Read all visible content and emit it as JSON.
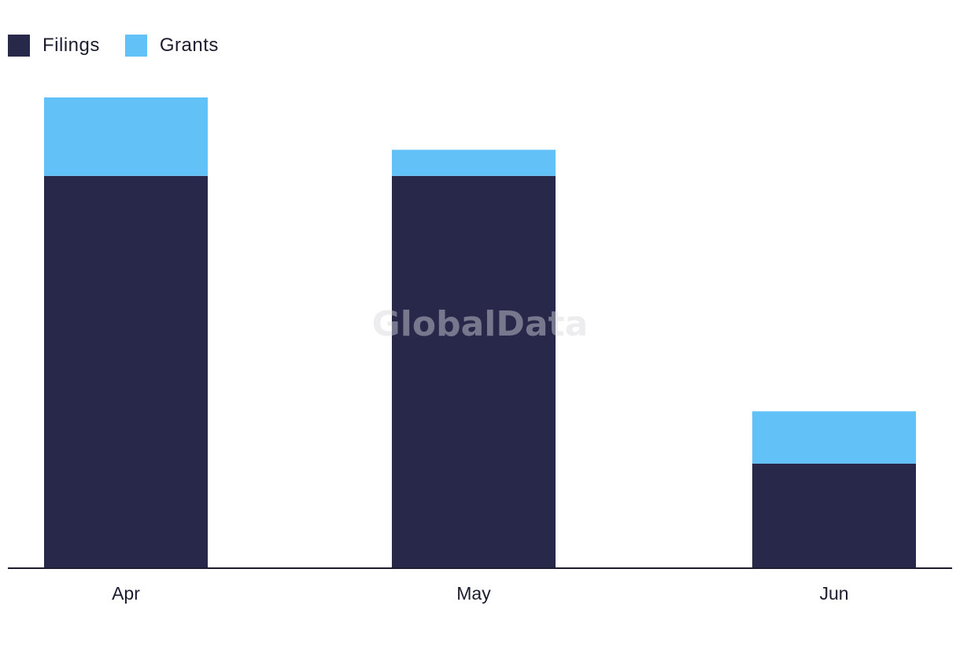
{
  "chart_data": {
    "type": "bar",
    "stacked": true,
    "categories": [
      "Apr",
      "May",
      "Jun"
    ],
    "series": [
      {
        "name": "Filings",
        "color": "#27284a",
        "values": [
          30,
          30,
          8
        ]
      },
      {
        "name": "Grants",
        "color": "#62c1f7",
        "values": [
          6,
          2,
          4
        ]
      }
    ],
    "ylim": [
      0,
      36
    ],
    "grid": false,
    "legend_position": "top-left",
    "xlabel": "",
    "ylabel": ""
  },
  "watermark": "GlobalData"
}
